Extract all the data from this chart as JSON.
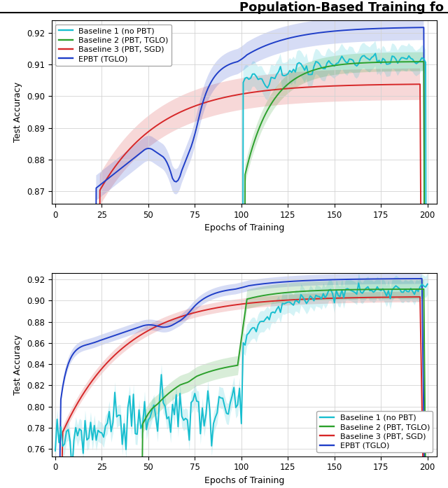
{
  "title": "Population-Based Training fo",
  "title_fontsize": 13,
  "title_fontweight": "bold",
  "subplot1": {
    "ylim": [
      0.866,
      0.924
    ],
    "yticks": [
      0.87,
      0.88,
      0.89,
      0.9,
      0.91,
      0.92
    ],
    "xlim": [
      -2,
      205
    ],
    "xticks": [
      0,
      25,
      50,
      75,
      100,
      125,
      150,
      175,
      200
    ],
    "xlabel": "Epochs of Training",
    "ylabel": "Test Accuracy"
  },
  "subplot2": {
    "ylim": [
      0.753,
      0.926
    ],
    "yticks": [
      0.76,
      0.78,
      0.8,
      0.82,
      0.84,
      0.86,
      0.88,
      0.9,
      0.92
    ],
    "xlim": [
      -2,
      205
    ],
    "xticks": [
      0,
      25,
      50,
      75,
      100,
      125,
      150,
      175,
      200
    ],
    "xlabel": "Epochs of Training",
    "ylabel": "Test Accuracy"
  },
  "colors": {
    "cyan": "#17BECF",
    "green": "#2CA02C",
    "red": "#D62728",
    "blue": "#1F3EC8"
  },
  "alpha_fill": 0.18,
  "linewidth": 1.4
}
